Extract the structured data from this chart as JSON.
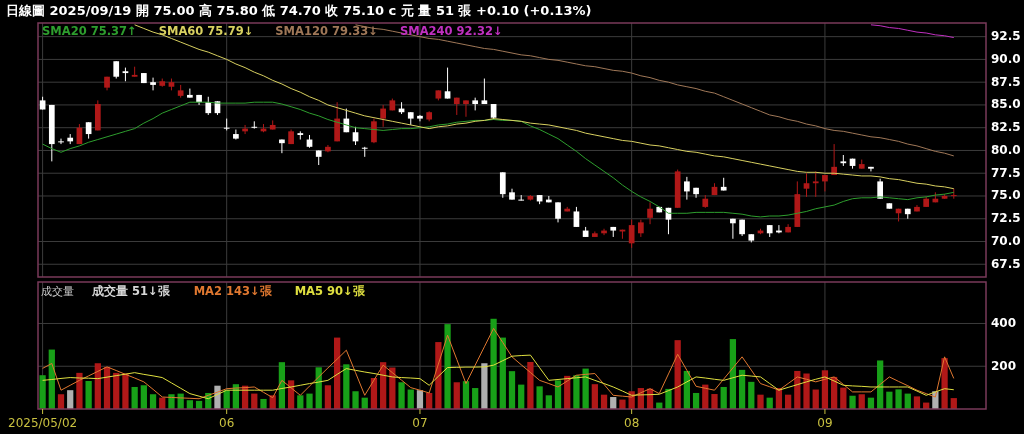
{
  "chart_data": [
    {
      "type": "candlestick",
      "title": "日線圖 2025/09/19 開 75.00 高 75.80 低 74.70 收 75.10 c 元 量 51 張 +0.10 (+0.13%)",
      "categories": [
        "2025/05/02",
        null,
        null,
        null,
        null,
        null,
        null,
        null,
        null,
        null,
        null,
        null,
        null,
        null,
        null,
        null,
        null,
        null,
        null,
        null,
        "06",
        null,
        null,
        null,
        null,
        null,
        null,
        null,
        null,
        null,
        null,
        null,
        null,
        null,
        null,
        null,
        null,
        null,
        null,
        null,
        null,
        "07",
        null,
        null,
        null,
        null,
        null,
        null,
        null,
        null,
        null,
        null,
        null,
        null,
        null,
        null,
        null,
        null,
        null,
        null,
        null,
        null,
        null,
        null,
        "08",
        null,
        null,
        null,
        null,
        null,
        null,
        null,
        null,
        null,
        null,
        null,
        null,
        null,
        null,
        null,
        null,
        null,
        null,
        null,
        null,
        "09",
        null,
        null,
        null,
        null,
        null,
        null,
        null,
        null,
        null,
        null,
        null,
        null,
        null,
        null,
        null,
        null,
        null
      ],
      "ohlc": [
        [
          85.5,
          85.9,
          84.5,
          84.5
        ],
        [
          85.0,
          85.0,
          78.8,
          80.7
        ],
        [
          81.0,
          81.3,
          80.7,
          80.9
        ],
        [
          81.4,
          81.8,
          80.7,
          81.0
        ],
        [
          80.7,
          82.9,
          80.7,
          82.5
        ],
        [
          83.1,
          83.1,
          81.3,
          81.8
        ],
        [
          82.2,
          85.5,
          82.2,
          85.1
        ],
        [
          86.9,
          88.1,
          86.6,
          88.1
        ],
        [
          89.8,
          89.8,
          87.9,
          88.1
        ],
        [
          88.7,
          89.1,
          87.6,
          88.5
        ],
        [
          88.1,
          89.2,
          88.1,
          88.3
        ],
        [
          88.5,
          88.5,
          87.4,
          87.4
        ],
        [
          87.5,
          88.0,
          86.6,
          87.2
        ],
        [
          87.1,
          87.9,
          87.0,
          87.6
        ],
        [
          87.0,
          87.9,
          86.6,
          87.5
        ],
        [
          86.0,
          87.2,
          85.8,
          86.6
        ],
        [
          86.1,
          86.8,
          85.8,
          85.8
        ],
        [
          86.1,
          86.1,
          85.0,
          85.3
        ],
        [
          85.3,
          85.9,
          83.9,
          84.1
        ],
        [
          85.4,
          85.4,
          83.9,
          84.1
        ],
        [
          82.5,
          83.5,
          82.2,
          82.4
        ],
        [
          81.8,
          82.3,
          81.2,
          81.3
        ],
        [
          82.1,
          82.8,
          81.8,
          82.4
        ],
        [
          82.6,
          83.2,
          82.4,
          82.5
        ],
        [
          82.1,
          82.9,
          82.0,
          82.4
        ],
        [
          82.3,
          83.3,
          82.3,
          82.8
        ],
        [
          81.2,
          81.2,
          79.7,
          80.8
        ],
        [
          80.7,
          82.3,
          80.7,
          82.1
        ],
        [
          81.9,
          82.1,
          81.2,
          81.7
        ],
        [
          81.2,
          81.7,
          80.3,
          80.4
        ],
        [
          80.0,
          80.0,
          78.4,
          79.3
        ],
        [
          79.9,
          80.6,
          79.8,
          80.4
        ],
        [
          81.0,
          85.3,
          81.0,
          83.5
        ],
        [
          83.5,
          84.6,
          82.0,
          82.0
        ],
        [
          82.0,
          82.6,
          80.6,
          81.0
        ],
        [
          80.3,
          80.4,
          79.3,
          80.2
        ],
        [
          80.9,
          83.5,
          80.8,
          83.2
        ],
        [
          83.5,
          85.0,
          82.6,
          84.6
        ],
        [
          84.4,
          85.7,
          84.4,
          85.5
        ],
        [
          84.6,
          85.3,
          84.0,
          84.2
        ],
        [
          84.2,
          84.2,
          82.8,
          83.5
        ],
        [
          83.8,
          83.9,
          83.2,
          83.5
        ],
        [
          83.4,
          84.3,
          83.2,
          84.2
        ],
        [
          85.7,
          86.6,
          85.5,
          86.6
        ],
        [
          86.5,
          89.1,
          85.7,
          85.7
        ],
        [
          85.1,
          85.8,
          83.9,
          85.8
        ],
        [
          85.1,
          85.5,
          83.7,
          85.5
        ],
        [
          85.5,
          85.8,
          84.4,
          85.1
        ],
        [
          85.5,
          87.9,
          85.1,
          85.1
        ],
        [
          85.1,
          85.1,
          83.4,
          83.6
        ],
        [
          77.6,
          77.6,
          74.8,
          75.2
        ],
        [
          75.4,
          75.8,
          74.6,
          74.6
        ],
        [
          74.6,
          75.1,
          74.5,
          74.5
        ],
        [
          74.6,
          75.1,
          74.5,
          75.0
        ],
        [
          75.1,
          75.1,
          74.1,
          74.4
        ],
        [
          74.6,
          75.0,
          74.3,
          74.3
        ],
        [
          74.3,
          74.3,
          72.1,
          72.5
        ],
        [
          73.3,
          73.8,
          73.3,
          73.6
        ],
        [
          73.3,
          73.8,
          71.6,
          71.6
        ],
        [
          71.2,
          71.6,
          70.5,
          70.5
        ],
        [
          70.5,
          71.1,
          70.5,
          70.9
        ],
        [
          70.9,
          71.4,
          70.7,
          71.2
        ],
        [
          71.6,
          71.6,
          70.5,
          71.2
        ],
        [
          71.1,
          71.3,
          70.3,
          71.3
        ],
        [
          69.8,
          72.4,
          69.3,
          71.8
        ],
        [
          70.9,
          72.4,
          70.5,
          72.1
        ],
        [
          72.6,
          74.3,
          71.9,
          73.6
        ],
        [
          73.8,
          73.8,
          73.2,
          73.2
        ],
        [
          73.7,
          73.7,
          70.8,
          72.4
        ],
        [
          73.7,
          77.9,
          73.7,
          77.7
        ],
        [
          76.6,
          77.1,
          74.6,
          75.5
        ],
        [
          75.9,
          75.9,
          74.8,
          75.2
        ],
        [
          73.8,
          75.1,
          73.7,
          74.7
        ],
        [
          75.1,
          76.4,
          75.1,
          76.0
        ],
        [
          76.0,
          77.0,
          75.6,
          75.6
        ],
        [
          72.5,
          72.5,
          70.3,
          72.0
        ],
        [
          72.4,
          72.4,
          70.6,
          70.8
        ],
        [
          70.8,
          70.8,
          69.9,
          70.1
        ],
        [
          70.9,
          71.4,
          70.8,
          71.2
        ],
        [
          71.8,
          71.8,
          70.5,
          70.9
        ],
        [
          71.2,
          71.8,
          70.9,
          71.0
        ],
        [
          71.0,
          71.9,
          71.0,
          71.6
        ],
        [
          71.6,
          76.6,
          71.6,
          75.2
        ],
        [
          75.8,
          77.5,
          74.9,
          76.4
        ],
        [
          76.4,
          77.7,
          74.9,
          76.6
        ],
        [
          76.6,
          77.3,
          75.5,
          77.3
        ],
        [
          77.3,
          80.7,
          77.3,
          78.2
        ],
        [
          78.8,
          79.5,
          78.3,
          78.6
        ],
        [
          79.1,
          79.1,
          78.0,
          78.3
        ],
        [
          78.0,
          79.0,
          78.0,
          78.5
        ],
        [
          78.2,
          78.2,
          77.7,
          78.0
        ],
        [
          76.6,
          76.9,
          74.7,
          74.7
        ],
        [
          74.2,
          74.2,
          73.6,
          73.6
        ],
        [
          73.1,
          73.6,
          72.2,
          73.6
        ],
        [
          73.6,
          73.6,
          72.5,
          73.0
        ],
        [
          73.3,
          74.0,
          73.3,
          73.8
        ],
        [
          73.8,
          74.9,
          73.8,
          74.7
        ],
        [
          74.3,
          75.4,
          74.3,
          74.7
        ],
        [
          74.7,
          75.2,
          74.7,
          75.0
        ],
        [
          75.0,
          75.8,
          74.7,
          75.1
        ],
        null,
        null,
        null
      ],
      "colors": [
        "#ffffff",
        "#ffffff",
        "#ffffff",
        "#ffffff",
        "#b01818",
        "#ffffff",
        "#b01818",
        "#b01818",
        "#ffffff",
        "#ffffff",
        "#b01818",
        "#ffffff",
        "#ffffff",
        "#b01818",
        "#b01818",
        "#b01818",
        "#ffffff",
        "#ffffff",
        "#ffffff",
        "#ffffff",
        "#ffffff",
        "#ffffff",
        "#b01818",
        "#ffffff",
        "#b01818",
        "#b01818",
        "#ffffff",
        "#b01818",
        "#ffffff",
        "#ffffff",
        "#ffffff",
        "#b01818",
        "#b01818",
        "#ffffff",
        "#ffffff",
        "#ffffff",
        "#b01818",
        "#b01818",
        "#b01818",
        "#ffffff",
        "#ffffff",
        "#ffffff",
        "#b01818",
        "#b01818",
        "#ffffff",
        "#b01818",
        "#b01818",
        "#ffffff",
        "#ffffff",
        "#ffffff",
        "#ffffff",
        "#ffffff",
        "#ffffff",
        "#b01818",
        "#ffffff",
        "#ffffff",
        "#ffffff",
        "#b01818",
        "#ffffff",
        "#ffffff",
        "#b01818",
        "#b01818",
        "#ffffff",
        "#b01818",
        "#b01818",
        "#b01818",
        "#b01818",
        "#ffffff",
        "#ffffff",
        "#b01818",
        "#ffffff",
        "#ffffff",
        "#b01818",
        "#b01818",
        "#ffffff",
        "#ffffff",
        "#ffffff",
        "#ffffff",
        "#b01818",
        "#ffffff",
        "#ffffff",
        "#b01818",
        "#b01818",
        "#b01818",
        "#b01818",
        "#b01818",
        "#b01818",
        "#ffffff",
        "#ffffff",
        "#b01818",
        "#ffffff",
        "#ffffff",
        "#ffffff",
        "#b01818",
        "#ffffff",
        "#b01818",
        "#b01818",
        "#b01818",
        "#b01818",
        "#b01818",
        null,
        null,
        null
      ],
      "series": [
        {
          "type": "line",
          "name": "SMA20 75.37↑",
          "color": "#2e9e2e",
          "values": [
            80.7,
            80.2,
            79.8,
            80.2,
            80.5,
            80.9,
            81.2,
            81.5,
            81.8,
            82.1,
            82.4,
            83.0,
            83.5,
            84.1,
            84.5,
            84.9,
            85.3,
            85.3,
            85.3,
            85.2,
            85.2,
            85.2,
            85.2,
            85.3,
            85.3,
            85.3,
            85.1,
            84.8,
            84.5,
            84.1,
            83.8,
            83.4,
            83.1,
            82.8,
            82.5,
            82.4,
            82.3,
            82.2,
            82.3,
            82.4,
            82.4,
            82.5,
            82.6,
            82.8,
            82.9,
            83.1,
            83.2,
            83.3,
            83.3,
            83.4,
            83.3,
            83.3,
            83.2,
            82.7,
            82.3,
            81.8,
            81.3,
            80.6,
            79.9,
            79.1,
            78.4,
            77.7,
            77.0,
            76.2,
            75.5,
            74.9,
            74.4,
            73.8,
            73.1,
            73.1,
            73.1,
            73.2,
            73.2,
            73.2,
            73.2,
            73.1,
            73.0,
            72.8,
            72.7,
            72.8,
            72.8,
            72.9,
            73.1,
            73.3,
            73.6,
            73.8,
            74.0,
            74.4,
            74.7,
            74.8,
            74.8,
            74.9,
            74.8,
            74.7,
            74.6,
            74.8,
            74.9,
            75.1,
            75.2,
            75.4,
            null,
            null,
            null
          ]
        },
        {
          "type": "line",
          "name": "SMA60 75.79↓",
          "color": "#d8d060",
          "values": [
            null,
            null,
            null,
            null,
            null,
            null,
            null,
            null,
            null,
            null,
            93.8,
            93.4,
            93.0,
            92.7,
            92.3,
            91.9,
            91.5,
            91.1,
            90.8,
            90.4,
            90.0,
            89.5,
            89.1,
            88.6,
            88.2,
            87.7,
            87.3,
            86.8,
            86.4,
            85.9,
            85.5,
            85.0,
            84.7,
            84.4,
            84.1,
            83.8,
            83.6,
            83.4,
            83.2,
            83.0,
            82.8,
            82.6,
            82.4,
            82.6,
            82.7,
            82.9,
            83.0,
            83.2,
            83.3,
            83.5,
            83.4,
            83.3,
            83.2,
            83.0,
            82.9,
            82.8,
            82.6,
            82.4,
            82.2,
            81.9,
            81.7,
            81.5,
            81.3,
            81.1,
            81.0,
            80.8,
            80.6,
            80.5,
            80.3,
            80.1,
            79.9,
            79.8,
            79.6,
            79.4,
            79.3,
            79.1,
            78.9,
            78.7,
            78.5,
            78.3,
            78.1,
            77.9,
            77.7,
            77.6,
            77.6,
            77.5,
            77.5,
            77.4,
            77.3,
            77.2,
            77.2,
            77.1,
            76.9,
            76.8,
            76.6,
            76.4,
            76.3,
            76.1,
            76.0,
            75.8,
            null,
            null,
            null
          ]
        },
        {
          "type": "line",
          "name": "SMA120 79.33↓",
          "color": "#a07858",
          "values": [
            null,
            null,
            null,
            null,
            null,
            null,
            null,
            null,
            null,
            null,
            null,
            null,
            null,
            null,
            null,
            null,
            null,
            null,
            null,
            null,
            null,
            null,
            null,
            null,
            null,
            null,
            null,
            null,
            null,
            null,
            null,
            null,
            null,
            null,
            93.8,
            93.6,
            93.4,
            93.3,
            93.1,
            92.9,
            92.7,
            92.5,
            92.3,
            92.2,
            92.0,
            91.8,
            91.6,
            91.4,
            91.2,
            91.1,
            90.9,
            90.7,
            90.5,
            90.4,
            90.2,
            90.0,
            89.9,
            89.7,
            89.5,
            89.3,
            89.2,
            89.0,
            88.8,
            88.7,
            88.5,
            88.2,
            88.0,
            87.7,
            87.5,
            87.2,
            87.0,
            86.8,
            86.5,
            86.3,
            85.9,
            85.5,
            85.1,
            84.7,
            84.3,
            83.9,
            83.7,
            83.4,
            83.2,
            82.9,
            82.7,
            82.4,
            82.2,
            82.1,
            81.9,
            81.7,
            81.5,
            81.4,
            81.2,
            81.0,
            80.7,
            80.5,
            80.2,
            79.9,
            79.7,
            79.4,
            null,
            null,
            null
          ]
        },
        {
          "type": "line",
          "name": "SMA240 92.32↓",
          "color": "#c030c0",
          "values": [
            null,
            null,
            null,
            null,
            null,
            null,
            null,
            null,
            null,
            null,
            null,
            null,
            null,
            null,
            null,
            null,
            null,
            null,
            null,
            null,
            null,
            null,
            null,
            null,
            null,
            null,
            null,
            null,
            null,
            null,
            null,
            null,
            null,
            null,
            null,
            null,
            null,
            null,
            null,
            null,
            null,
            null,
            null,
            null,
            null,
            null,
            null,
            null,
            null,
            null,
            null,
            null,
            null,
            null,
            null,
            null,
            null,
            null,
            null,
            null,
            null,
            null,
            null,
            null,
            null,
            null,
            null,
            null,
            null,
            null,
            null,
            null,
            null,
            null,
            null,
            null,
            null,
            null,
            null,
            null,
            null,
            null,
            null,
            null,
            null,
            null,
            null,
            null,
            null,
            null,
            93.8,
            93.7,
            93.5,
            93.4,
            93.2,
            93.0,
            92.9,
            92.7,
            92.6,
            92.4,
            null,
            null,
            null
          ]
        }
      ],
      "ylim": [
        66.1,
        94.0
      ],
      "yticks": [
        67.5,
        {
          "value": 70,
          "label": "70.0"
        },
        72.5,
        {
          "value": 75,
          "label": "75.0"
        },
        77.5,
        {
          "value": 80,
          "label": "80.0"
        },
        82.5,
        {
          "value": 85,
          "label": "85.0"
        },
        87.5,
        {
          "value": 90,
          "label": "90.0"
        },
        92.5
      ],
      "tick_labels": "y",
      "grid": true,
      "legend": "top left"
    },
    {
      "type": "bar",
      "title": "成交量",
      "categories": [
        "2025/05/02",
        null,
        null,
        null,
        null,
        null,
        null,
        null,
        null,
        null,
        null,
        null,
        null,
        null,
        null,
        null,
        null,
        null,
        null,
        null,
        "06",
        null,
        null,
        null,
        null,
        null,
        null,
        null,
        null,
        null,
        null,
        null,
        null,
        null,
        null,
        null,
        null,
        null,
        null,
        null,
        null,
        "07",
        null,
        null,
        null,
        null,
        null,
        null,
        null,
        null,
        null,
        null,
        null,
        null,
        null,
        null,
        null,
        null,
        null,
        null,
        null,
        null,
        null,
        null,
        "08",
        null,
        null,
        null,
        null,
        null,
        null,
        null,
        null,
        null,
        null,
        null,
        null,
        null,
        null,
        null,
        null,
        null,
        null,
        null,
        null,
        "09",
        null,
        null,
        null,
        null,
        null,
        null,
        null,
        null,
        null,
        null,
        null,
        null,
        null,
        null,
        null,
        null,
        null
      ],
      "series": [
        {
          "name": "成交量 51↓張",
          "values": [
            158,
            278,
            69,
            88,
            169,
            131,
            214,
            197,
            169,
            166,
            103,
            111,
            69,
            53,
            69,
            72,
            41,
            38,
            75,
            109,
            88,
            116,
            109,
            72,
            47,
            64,
            219,
            134,
            64,
            72,
            195,
            111,
            334,
            209,
            83,
            53,
            145,
            219,
            194,
            125,
            91,
            88,
            75,
            313,
            397,
            125,
            130,
            98,
            214,
            422,
            334,
            177,
            114,
            220,
            106,
            64,
            134,
            155,
            158,
            189,
            116,
            67,
            56,
            44,
            83,
            98,
            95,
            30,
            94,
            322,
            178,
            75,
            114,
            70,
            103,
            327,
            183,
            127,
            67,
            53,
            98,
            67,
            178,
            166,
            91,
            181,
            150,
            100,
            62,
            69,
            53,
            227,
            81,
            92,
            72,
            59,
            30,
            83,
            238,
            51,
            null,
            null,
            null
          ],
          "colors": [
            "#18a018",
            "#18a018",
            "#b01818",
            "#b0b0b0",
            "#b01818",
            "#18a018",
            "#b01818",
            "#b01818",
            "#b01818",
            "#b01818",
            "#18a018",
            "#18a018",
            "#18a018",
            "#b01818",
            "#18a018",
            "#18a018",
            "#18a018",
            "#18a018",
            "#18a018",
            "#b0b0b0",
            "#18a018",
            "#18a018",
            "#b01818",
            "#b01818",
            "#18a018",
            "#b01818",
            "#18a018",
            "#b01818",
            "#18a018",
            "#18a018",
            "#18a018",
            "#b01818",
            "#b01818",
            "#18a018",
            "#18a018",
            "#18a018",
            "#b01818",
            "#b01818",
            "#b01818",
            "#18a018",
            "#18a018",
            "#b0b0b0",
            "#b01818",
            "#b01818",
            "#18a018",
            "#b01818",
            "#18a018",
            "#18a018",
            "#b0b0b0",
            "#18a018",
            "#18a018",
            "#18a018",
            "#18a018",
            "#b01818",
            "#18a018",
            "#18a018",
            "#18a018",
            "#b01818",
            "#18a018",
            "#18a018",
            "#b01818",
            "#b01818",
            "#b0b0b0",
            "#b01818",
            "#b01818",
            "#b01818",
            "#b01818",
            "#18a018",
            "#18a018",
            "#b01818",
            "#18a018",
            "#18a018",
            "#b01818",
            "#b01818",
            "#18a018",
            "#18a018",
            "#18a018",
            "#18a018",
            "#b01818",
            "#18a018",
            "#b01818",
            "#b01818",
            "#b01818",
            "#b01818",
            "#b01818",
            "#b01818",
            "#b01818",
            "#b01818",
            "#18a018",
            "#b01818",
            "#18a018",
            "#18a018",
            "#18a018",
            "#18a018",
            "#18a018",
            "#b01818",
            "#b01818",
            "#b0b0b0",
            "#b01818",
            "#b01818",
            null,
            null,
            null
          ]
        },
        {
          "type": "line",
          "name": "MA2 143↓張",
          "color": "#e07830",
          "values": [
            190,
            213,
            88,
            111,
            134,
            155,
            176,
            197,
            180,
            162,
            145,
            127,
            92,
            56,
            54,
            52,
            50,
            48,
            64,
            79,
            95,
            98,
            100,
            103,
            78,
            53,
            134,
            99,
            64,
            107,
            150,
            192,
            233,
            275,
            170,
            64,
            135,
            205,
            170,
            135,
            100,
            88,
            75,
            210,
            345,
            232,
            119,
            205,
            291,
            377,
            311,
            244,
            207,
            171,
            134,
            119,
            103,
            131,
            158,
            162,
            166,
            115,
            64,
            60,
            56,
            76,
            95,
            72,
            164,
            256,
            181,
            106,
            97,
            88,
            140,
            192,
            244,
            182,
            119,
            104,
            88,
            119,
            150,
            139,
            127,
            139,
            150,
            115,
            80,
            80,
            80,
            115,
            150,
            129,
            109,
            88,
            72,
            56,
            244,
            143,
            null,
            null,
            null
          ]
        },
        {
          "type": "line",
          "name": "MA5 90↓張",
          "color": "#e0e040",
          "values": [
            134,
            138,
            143,
            147,
            145,
            144,
            142,
            149,
            156,
            163,
            170,
            162,
            155,
            147,
            122,
            97,
            72,
            60,
            48,
            68,
            88,
            88,
            88,
            88,
            88,
            88,
            96,
            103,
            111,
            119,
            126,
            134,
            162,
            189,
            181,
            173,
            166,
            158,
            150,
            147,
            145,
            142,
            111,
            153,
            194,
            195,
            196,
            196,
            197,
            205,
            226,
            247,
            250,
            252,
            193,
            134,
            138,
            142,
            146,
            150,
            134,
            119,
            103,
            84,
            64,
            66,
            67,
            69,
            86,
            103,
            127,
            150,
            145,
            139,
            134,
            146,
            158,
            154,
            150,
            119,
            88,
            101,
            114,
            127,
            139,
            150,
            131,
            111,
            108,
            106,
            103,
            103,
            103,
            103,
            103,
            84,
            64,
            80,
            95,
            90,
            null,
            null,
            null
          ]
        }
      ],
      "ylim": [
        0,
        594
      ],
      "yticks": [
        200,
        400
      ],
      "grid": true,
      "legend": "top left"
    }
  ]
}
